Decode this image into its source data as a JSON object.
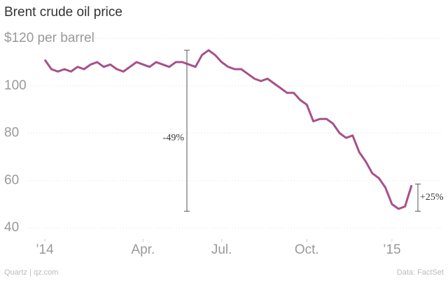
{
  "chart_data": {
    "type": "line",
    "title": "Brent crude oil price",
    "categories": [
      "’14",
      null,
      null,
      null,
      null,
      null,
      null,
      null,
      null,
      null,
      null,
      null,
      null,
      null,
      null,
      "Apr.",
      null,
      null,
      null,
      null,
      null,
      null,
      null,
      null,
      null,
      null,
      null,
      "Jul.",
      null,
      null,
      null,
      null,
      null,
      null,
      null,
      null,
      null,
      null,
      null,
      null,
      "Oct.",
      null,
      null,
      null,
      null,
      null,
      null,
      null,
      null,
      null,
      null,
      null,
      null,
      "’15",
      null,
      null,
      null
    ],
    "values": [
      111,
      107,
      106,
      107,
      106,
      108,
      107,
      109,
      110,
      108,
      109,
      107,
      106,
      108,
      110,
      109,
      108,
      110,
      109,
      108,
      110,
      110,
      109,
      108,
      113,
      115,
      113,
      110,
      108,
      107,
      107,
      105,
      103,
      102,
      103,
      101,
      99,
      97,
      97,
      94,
      92,
      85,
      86,
      86,
      84,
      80,
      78,
      79,
      72,
      68,
      63,
      61,
      57,
      50,
      48,
      49,
      58
    ],
    "color": "#a8508a",
    "ylim": [
      40,
      120
    ],
    "yticks": [
      40,
      60,
      80,
      100,
      {
        "value": 120,
        "label": "$120 per barrel"
      }
    ],
    "grid": true,
    "annotations": [
      {
        "text": "-49%",
        "high": 115,
        "low": 47
      },
      {
        "text": "+25%",
        "high": 58.5,
        "low": 47
      }
    ],
    "footer_left": "Quartz | qz.com",
    "footer_right": "Data: FactSet"
  }
}
